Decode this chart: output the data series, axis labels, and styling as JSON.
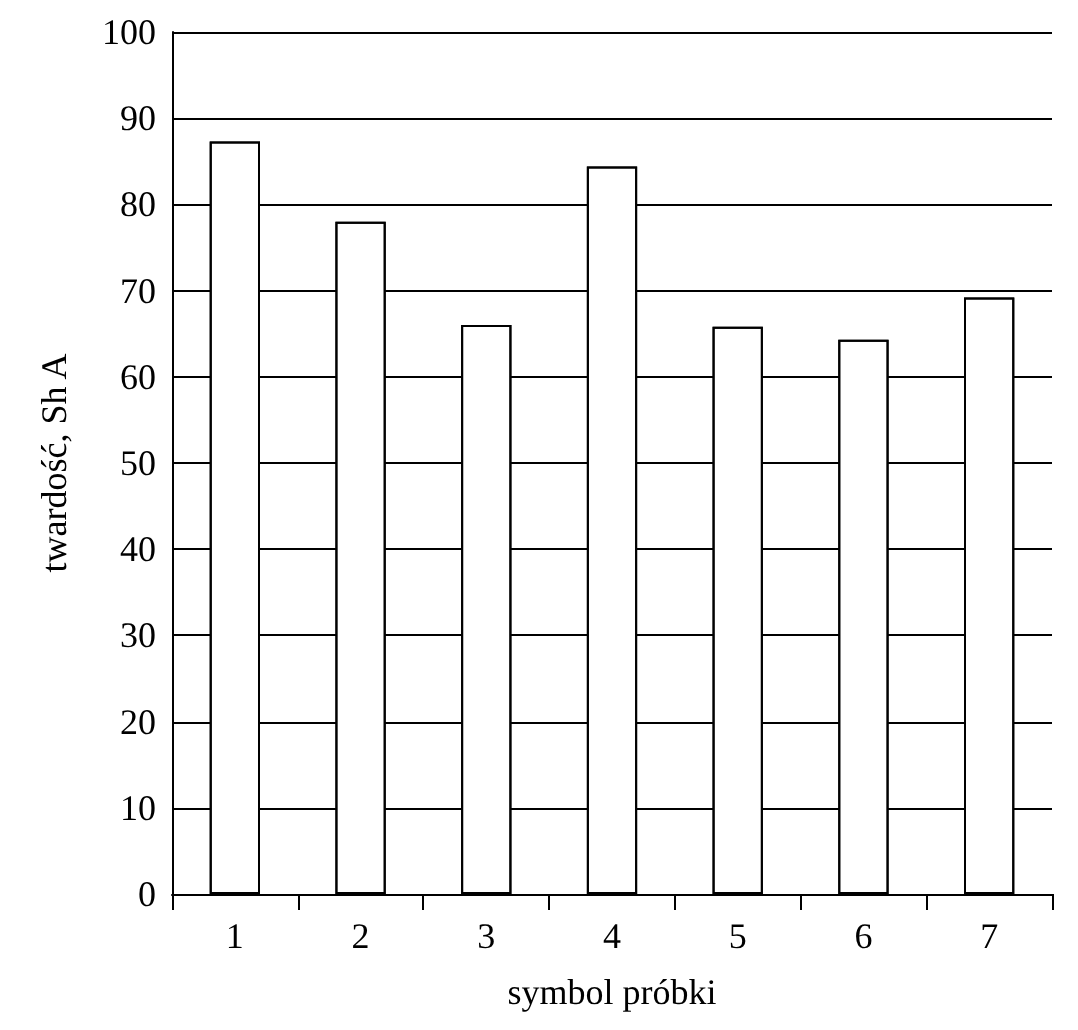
{
  "chart_data": {
    "type": "bar",
    "xlabel": "symbol próbki",
    "ylabel": "twardość, Sh A",
    "categories": [
      "1",
      "2",
      "3",
      "4",
      "5",
      "6",
      "7"
    ],
    "values": [
      87.3,
      78,
      66,
      84.4,
      65.8,
      64.3,
      69.2
    ],
    "color": "#ffffff",
    "ylim": [
      0,
      100
    ],
    "yticks": [
      0,
      10,
      20,
      30,
      40,
      50,
      60,
      70,
      80,
      90,
      100
    ],
    "grid": "y"
  }
}
